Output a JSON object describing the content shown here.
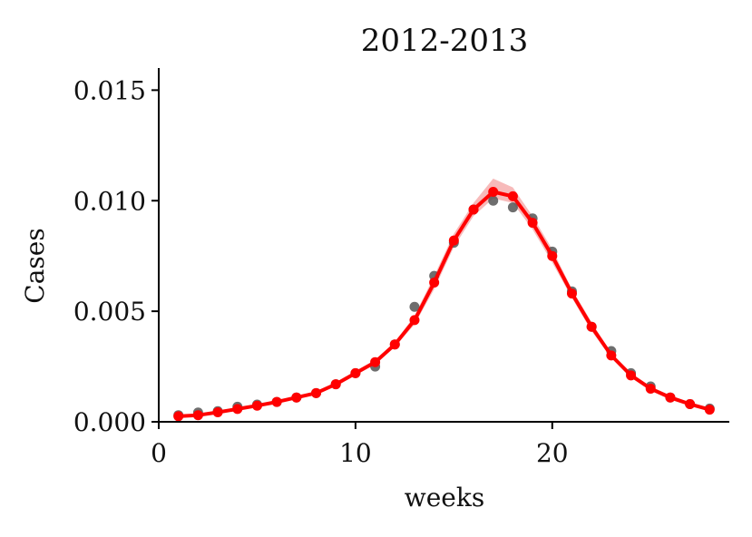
{
  "chart_data": {
    "type": "line",
    "title": "2012-2013",
    "xlabel": "weeks",
    "ylabel": "Cases",
    "xlim": [
      0,
      29
    ],
    "ylim": [
      0,
      0.016
    ],
    "xticks": [
      0,
      10,
      20
    ],
    "xtick_labels": [
      "0",
      "10",
      "20"
    ],
    "yticks": [
      0,
      0.005,
      0.01,
      0.015
    ],
    "ytick_labels": [
      "0.000",
      "0.005",
      "0.010",
      "0.015"
    ],
    "grid": false,
    "legend": "none",
    "series": [
      {
        "role": "observed",
        "style": "scatter",
        "color": "#555555",
        "x": [
          1,
          2,
          3,
          4,
          5,
          6,
          7,
          8,
          9,
          10,
          11,
          12,
          13,
          14,
          15,
          16,
          17,
          18,
          19,
          20,
          21,
          22,
          23,
          24,
          25,
          26,
          27,
          28
        ],
        "values": [
          0.0003,
          0.00042,
          0.00048,
          0.00068,
          0.00078,
          0.0009,
          0.0011,
          0.0013,
          0.0017,
          0.0022,
          0.0025,
          0.0035,
          0.0052,
          0.0066,
          0.0081,
          0.0096,
          0.01,
          0.0097,
          0.0092,
          0.0077,
          0.0059,
          0.0043,
          0.0032,
          0.0022,
          0.0016,
          0.0011,
          0.0008,
          0.0006
        ]
      },
      {
        "role": "model",
        "style": "line+markers",
        "color": "#ff0000",
        "x": [
          1,
          2,
          3,
          4,
          5,
          6,
          7,
          8,
          9,
          10,
          11,
          12,
          13,
          14,
          15,
          16,
          17,
          18,
          19,
          20,
          21,
          22,
          23,
          24,
          25,
          26,
          27,
          28
        ],
        "values": [
          0.00025,
          0.0003,
          0.00043,
          0.00058,
          0.00073,
          0.0009,
          0.0011,
          0.0013,
          0.0017,
          0.0022,
          0.0027,
          0.0035,
          0.0046,
          0.0063,
          0.0082,
          0.0096,
          0.0104,
          0.0102,
          0.009,
          0.0075,
          0.0058,
          0.0043,
          0.003,
          0.0021,
          0.0015,
          0.0011,
          0.0008,
          0.00055
        ],
        "band_lower": [
          0.0002,
          0.00026,
          0.00038,
          0.00052,
          0.00067,
          0.00084,
          0.00104,
          0.00124,
          0.00162,
          0.0021,
          0.0026,
          0.0034,
          0.0044,
          0.006,
          0.0079,
          0.0093,
          0.0101,
          0.0099,
          0.0087,
          0.0072,
          0.0056,
          0.0041,
          0.0029,
          0.002,
          0.0014,
          0.001,
          0.00072,
          0.00048
        ],
        "band_upper": [
          0.0003,
          0.00034,
          0.00048,
          0.00064,
          0.00079,
          0.00096,
          0.00116,
          0.00136,
          0.00178,
          0.0023,
          0.0028,
          0.0036,
          0.0048,
          0.0066,
          0.0085,
          0.0099,
          0.011,
          0.0106,
          0.0093,
          0.0078,
          0.006,
          0.0045,
          0.0031,
          0.0022,
          0.0016,
          0.0012,
          0.00088,
          0.00062
        ],
        "band_color": "#f4a3a3"
      }
    ]
  }
}
